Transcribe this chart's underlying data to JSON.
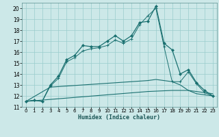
{
  "xlabel": "Humidex (Indice chaleur)",
  "bg_color": "#cce8e8",
  "grid_color": "#99cccc",
  "line_color": "#1a7070",
  "xlim": [
    -0.5,
    23.5
  ],
  "ylim": [
    11,
    20.5
  ],
  "yticks": [
    11,
    12,
    13,
    14,
    15,
    16,
    17,
    18,
    19,
    20
  ],
  "xticks": [
    0,
    1,
    2,
    3,
    4,
    5,
    6,
    7,
    8,
    9,
    10,
    11,
    12,
    13,
    14,
    15,
    16,
    17,
    18,
    19,
    20,
    21,
    22,
    23
  ],
  "line1_x": [
    0,
    1,
    2,
    3,
    4,
    5,
    6,
    7,
    8,
    9,
    10,
    11,
    12,
    13,
    14,
    15,
    16,
    17,
    18,
    19,
    20,
    21,
    22,
    23
  ],
  "line1_y": [
    11.5,
    11.6,
    11.5,
    13.0,
    13.8,
    15.3,
    15.7,
    16.6,
    16.5,
    16.5,
    17.0,
    17.5,
    17.0,
    17.5,
    18.7,
    18.8,
    20.2,
    16.8,
    16.2,
    14.0,
    14.4,
    13.2,
    12.5,
    12.0
  ],
  "line2_x": [
    0,
    1,
    2,
    3,
    4,
    5,
    6,
    7,
    8,
    9,
    10,
    11,
    12,
    13,
    14,
    15,
    16,
    17,
    18,
    19,
    20,
    21,
    22,
    23
  ],
  "line2_y": [
    11.5,
    11.6,
    11.5,
    12.9,
    13.6,
    15.1,
    15.5,
    16.1,
    16.3,
    16.4,
    16.6,
    17.1,
    16.8,
    17.2,
    18.5,
    19.3,
    20.0,
    16.5,
    13.3,
    13.3,
    14.2,
    13.1,
    12.3,
    12.0
  ],
  "line3_x": [
    0,
    3,
    5,
    7,
    9,
    11,
    13,
    15,
    16,
    17,
    18,
    19,
    20,
    21,
    22,
    23
  ],
  "line3_y": [
    11.5,
    12.8,
    12.9,
    13.0,
    13.1,
    13.2,
    13.3,
    13.4,
    13.5,
    13.4,
    13.3,
    13.0,
    12.5,
    12.2,
    12.1,
    12.0
  ],
  "line4_x": [
    0,
    5,
    10,
    15,
    18,
    20,
    22,
    23
  ],
  "line4_y": [
    11.5,
    11.8,
    12.1,
    12.4,
    12.5,
    12.5,
    12.3,
    12.2
  ]
}
